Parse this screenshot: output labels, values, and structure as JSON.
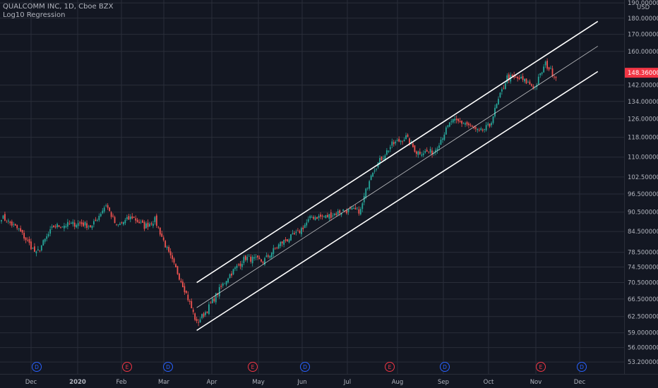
{
  "header": {
    "symbol_line": "QUALCOMM INC, 1D, Cboe BZX",
    "indicator": "Log10 Regression",
    "currency": "USD"
  },
  "price_tag": {
    "label": "148.36000000",
    "value": 148.36,
    "color": "#f23645"
  },
  "colors": {
    "up": "#26a69a",
    "down": "#ef5350",
    "channel": "#ffffff",
    "grid": "#2a2e39",
    "background": "#131722"
  },
  "chart_data": {
    "type": "candlestick",
    "y_scale": "log",
    "ylim": [
      51,
      192
    ],
    "y_ticks": [
      {
        "label": "190.00000000",
        "value": 190
      },
      {
        "label": "180.00000000",
        "value": 180
      },
      {
        "label": "170.00000000",
        "value": 170
      },
      {
        "label": "160.00000000",
        "value": 160
      },
      {
        "label": "142.00000000",
        "value": 142
      },
      {
        "label": "134.00000000",
        "value": 134
      },
      {
        "label": "126.00000000",
        "value": 126
      },
      {
        "label": "118.00000000",
        "value": 118
      },
      {
        "label": "110.00000000",
        "value": 110
      },
      {
        "label": "102.50000000",
        "value": 102.5
      },
      {
        "label": "96.50000000",
        "value": 96.5
      },
      {
        "label": "90.50000000",
        "value": 90.5
      },
      {
        "label": "84.50000000",
        "value": 84.5
      },
      {
        "label": "78.50000000",
        "value": 78.5
      },
      {
        "label": "74.50000000",
        "value": 74.5
      },
      {
        "label": "70.50000000",
        "value": 70.5
      },
      {
        "label": "66.50000000",
        "value": 66.5
      },
      {
        "label": "62.50000000",
        "value": 62.5
      },
      {
        "label": "59.00000000",
        "value": 59
      },
      {
        "label": "56.00000000",
        "value": 56
      },
      {
        "label": "53.20000000",
        "value": 53.2
      }
    ],
    "x_ticks": [
      {
        "label": "Dec",
        "bold": false
      },
      {
        "label": "2020",
        "bold": true
      },
      {
        "label": "Feb",
        "bold": false
      },
      {
        "label": "Mar",
        "bold": false
      },
      {
        "label": "Apr",
        "bold": false
      },
      {
        "label": "May",
        "bold": false
      },
      {
        "label": "Jun",
        "bold": false
      },
      {
        "label": "Jul",
        "bold": false
      },
      {
        "label": "Aug",
        "bold": false
      },
      {
        "label": "Sep",
        "bold": false
      },
      {
        "label": "Oct",
        "bold": false
      },
      {
        "label": "Nov",
        "bold": false
      },
      {
        "label": "Dec",
        "bold": false
      }
    ],
    "event_markers": [
      {
        "label": "D",
        "type": "dividend"
      },
      {
        "label": "E",
        "type": "earnings"
      },
      {
        "label": "D",
        "type": "dividend"
      },
      {
        "label": "E",
        "type": "earnings"
      },
      {
        "label": "D",
        "type": "dividend"
      },
      {
        "label": "E",
        "type": "earnings"
      },
      {
        "label": "D",
        "type": "dividend"
      },
      {
        "label": "E",
        "type": "earnings"
      },
      {
        "label": "D",
        "type": "dividend"
      }
    ],
    "series_close_anchors": [
      [
        0,
        89
      ],
      [
        10,
        85
      ],
      [
        20,
        78
      ],
      [
        30,
        86
      ],
      [
        45,
        87
      ],
      [
        52,
        86
      ],
      [
        60,
        93
      ],
      [
        66,
        86
      ],
      [
        75,
        89
      ],
      [
        82,
        86
      ],
      [
        88,
        88
      ],
      [
        96,
        78
      ],
      [
        104,
        70
      ],
      [
        112,
        61
      ],
      [
        118,
        64
      ],
      [
        130,
        72
      ],
      [
        140,
        77
      ],
      [
        150,
        76
      ],
      [
        160,
        81
      ],
      [
        170,
        84
      ],
      [
        178,
        89
      ],
      [
        186,
        89
      ],
      [
        196,
        91
      ],
      [
        206,
        91
      ],
      [
        212,
        104
      ],
      [
        224,
        115
      ],
      [
        232,
        118
      ],
      [
        238,
        112
      ],
      [
        248,
        112
      ],
      [
        258,
        125
      ],
      [
        266,
        124
      ],
      [
        274,
        120
      ],
      [
        280,
        123
      ],
      [
        290,
        146
      ],
      [
        298,
        145
      ],
      [
        306,
        141
      ],
      [
        312,
        153
      ],
      [
        318,
        146
      ]
    ],
    "regression": {
      "start_index": 112,
      "end_index": 342,
      "upper": [
        70.5,
        178
      ],
      "mid": [
        64.5,
        163
      ],
      "lower": [
        59.5,
        149
      ]
    }
  }
}
